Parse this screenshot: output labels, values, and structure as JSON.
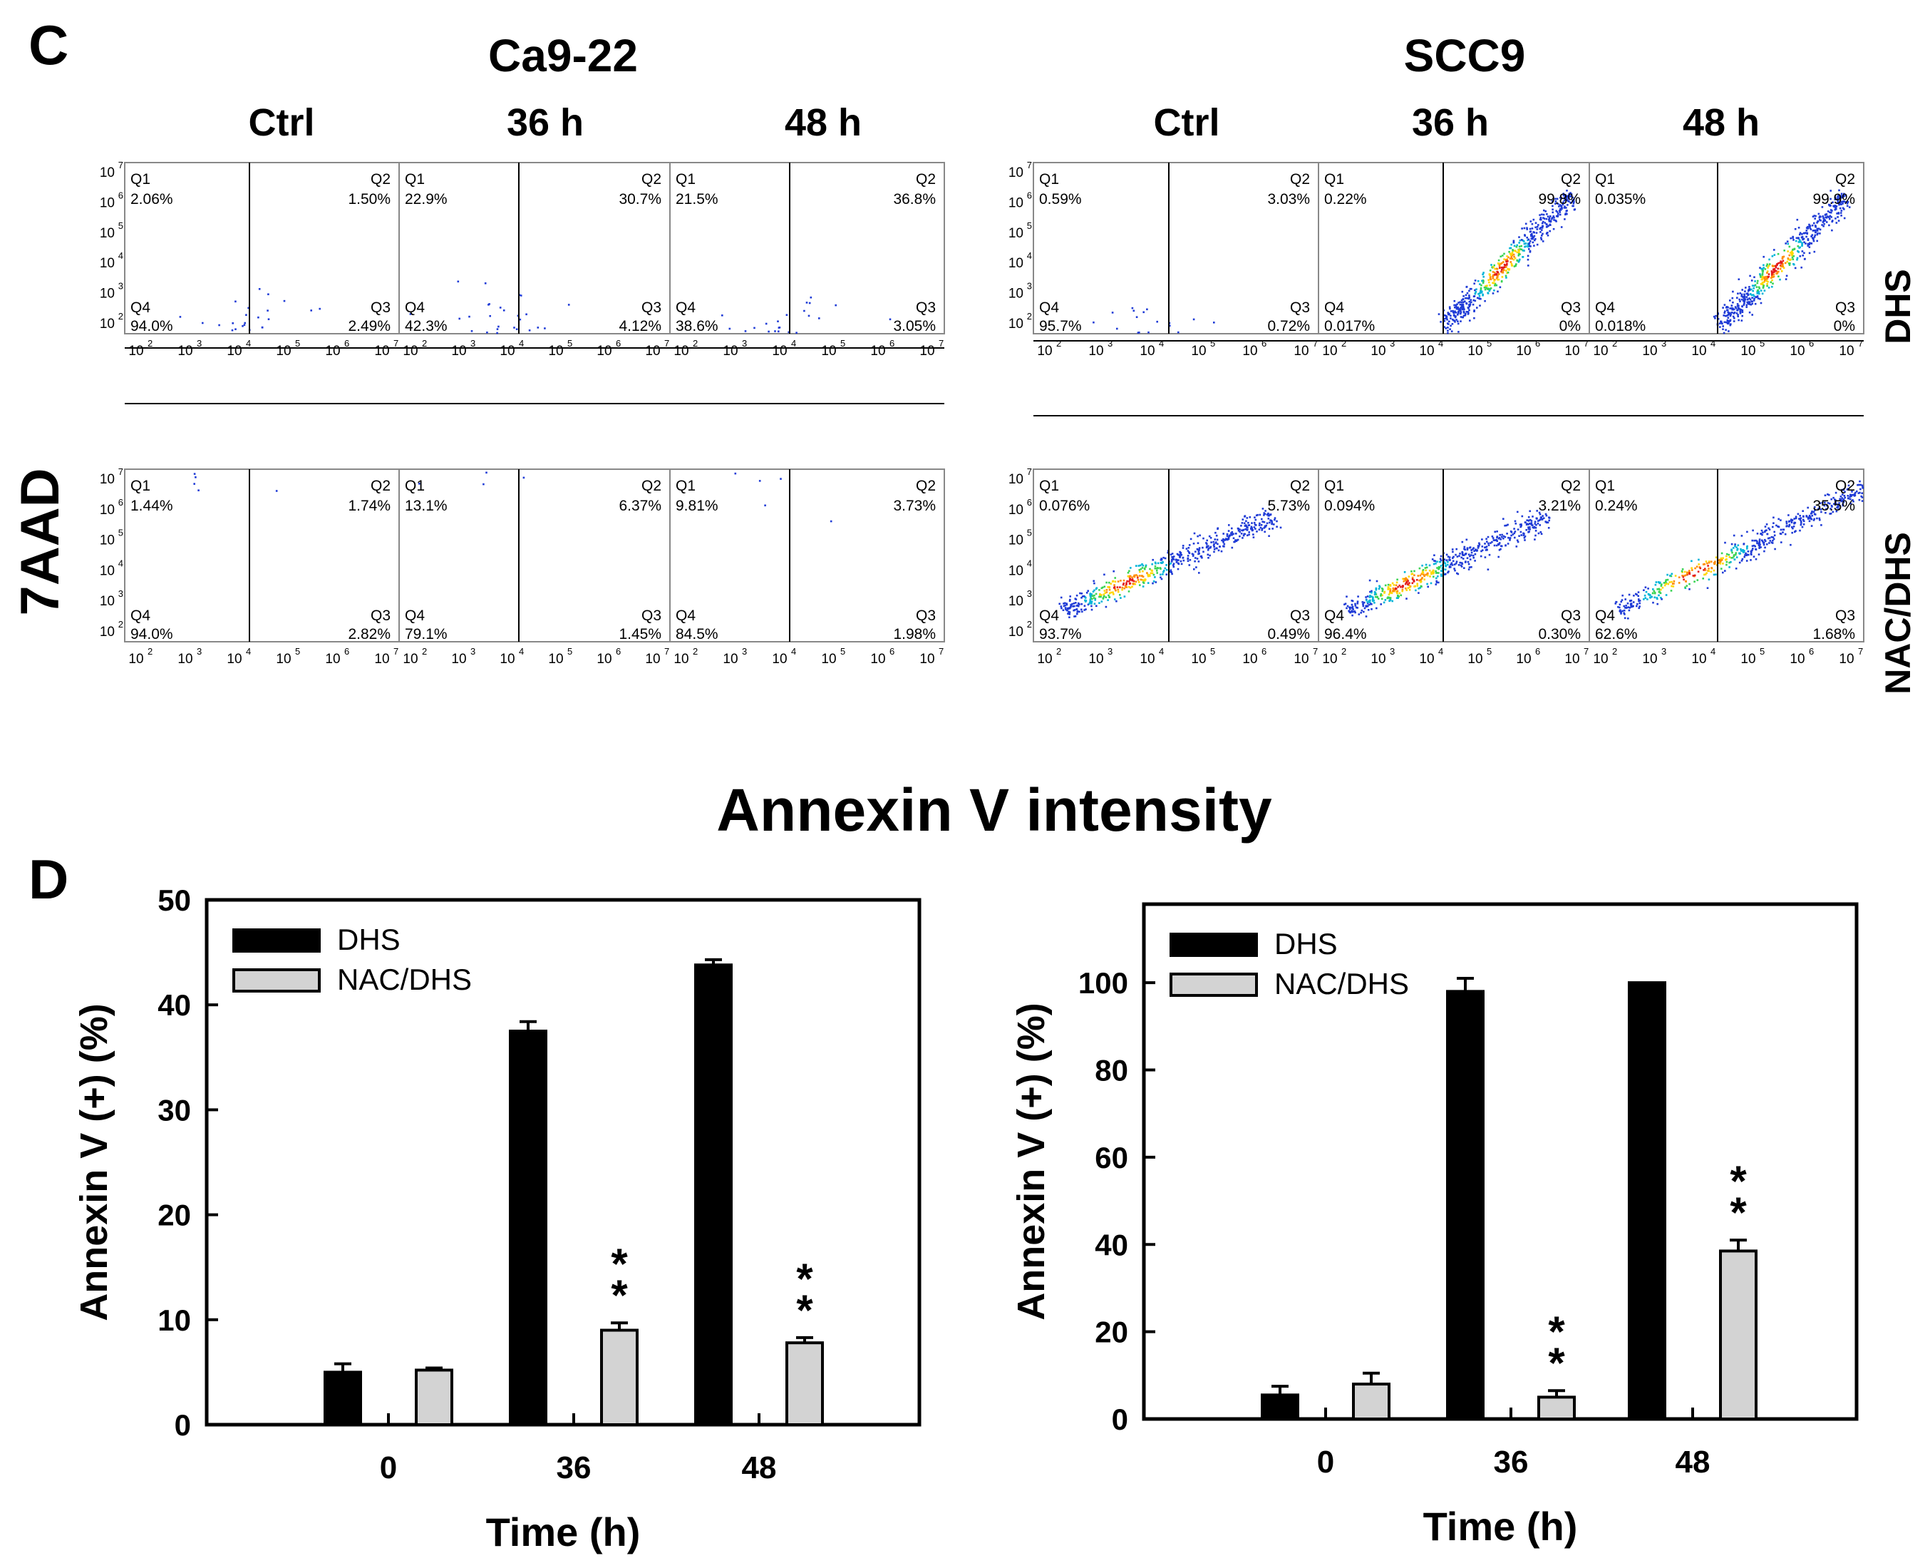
{
  "panel_c": {
    "letter": "C",
    "y_label": "7AAD",
    "x_label": "Annexin V intensity",
    "cell_lines": [
      "Ca9-22",
      "SCC9"
    ],
    "time_labels": [
      "Ctrl",
      "36 h",
      "48 h"
    ],
    "row_labels": [
      "DHS",
      "NAC/DHS"
    ],
    "axis_tick_labels": [
      "10",
      "10",
      "10",
      "10",
      "10",
      "10"
    ],
    "axis_tick_exponents": [
      "2",
      "3",
      "4",
      "5",
      "6",
      "7"
    ],
    "blocks": [
      {
        "cell_line": "Ca9-22",
        "rows": [
          {
            "treatment": "DHS",
            "plots": [
              {
                "time": "Ctrl",
                "quadrants": {
                  "Q1": "2.06%",
                  "Q2": "1.50%",
                  "Q3": "2.49%",
                  "Q4": "94.0%"
                }
              },
              {
                "time": "36 h",
                "quadrants": {
                  "Q1": "22.9%",
                  "Q2": "30.7%",
                  "Q3": "4.12%",
                  "Q4": "42.3%"
                }
              },
              {
                "time": "48 h",
                "quadrants": {
                  "Q1": "21.5%",
                  "Q2": "36.8%",
                  "Q3": "3.05%",
                  "Q4": "38.6%"
                }
              }
            ]
          },
          {
            "treatment": "NAC/DHS",
            "plots": [
              {
                "time": "Ctrl",
                "quadrants": {
                  "Q1": "1.44%",
                  "Q2": "1.74%",
                  "Q3": "2.82%",
                  "Q4": "94.0%"
                }
              },
              {
                "time": "36 h",
                "quadrants": {
                  "Q1": "13.1%",
                  "Q2": "6.37%",
                  "Q3": "1.45%",
                  "Q4": "79.1%"
                }
              },
              {
                "time": "48 h",
                "quadrants": {
                  "Q1": "9.81%",
                  "Q2": "3.73%",
                  "Q3": "1.98%",
                  "Q4": "84.5%"
                }
              }
            ]
          }
        ]
      },
      {
        "cell_line": "SCC9",
        "rows": [
          {
            "treatment": "DHS",
            "plots": [
              {
                "time": "Ctrl",
                "quadrants": {
                  "Q1": "0.59%",
                  "Q2": "3.03%",
                  "Q3": "0.72%",
                  "Q4": "95.7%"
                }
              },
              {
                "time": "36 h",
                "quadrants": {
                  "Q1": "0.22%",
                  "Q2": "99.8%",
                  "Q3": "0%",
                  "Q4": "0.017%"
                }
              },
              {
                "time": "48 h",
                "quadrants": {
                  "Q1": "0.035%",
                  "Q2": "99.9%",
                  "Q3": "0%",
                  "Q4": "0.018%"
                }
              }
            ]
          },
          {
            "treatment": "NAC/DHS",
            "plots": [
              {
                "time": "Ctrl",
                "quadrants": {
                  "Q1": "0.076%",
                  "Q2": "5.73%",
                  "Q3": "0.49%",
                  "Q4": "93.7%"
                }
              },
              {
                "time": "36 h",
                "quadrants": {
                  "Q1": "0.094%",
                  "Q2": "3.21%",
                  "Q3": "0.30%",
                  "Q4": "96.4%"
                }
              },
              {
                "time": "48 h",
                "quadrants": {
                  "Q1": "0.24%",
                  "Q2": "35.5%",
                  "Q3": "1.68%",
                  "Q4": "62.6%"
                }
              }
            ]
          }
        ]
      }
    ]
  },
  "chart_data": [
    {
      "type": "bar",
      "panel": "D",
      "cell_line": "Ca9-22",
      "categories": [
        "0",
        "36",
        "48"
      ],
      "series": [
        {
          "name": "DHS",
          "values": [
            5.0,
            37.5,
            43.8
          ],
          "errors": [
            0.8,
            0.9,
            0.5
          ],
          "color": "#000000"
        },
        {
          "name": "NAC/DHS",
          "values": [
            5.2,
            9.0,
            7.8
          ],
          "errors": [
            0.2,
            0.7,
            0.5
          ],
          "color": "#d3d3d3"
        }
      ],
      "significance": [
        {
          "category": "36",
          "series": "NAC/DHS",
          "label": "**"
        },
        {
          "category": "48",
          "series": "NAC/DHS",
          "label": "**"
        }
      ],
      "xlabel": "Time (h)",
      "ylabel": "Annexin V (+) (%)",
      "ylim": [
        0,
        50
      ],
      "yticks": [
        0,
        10,
        20,
        30,
        40,
        50
      ],
      "legend": "top-left",
      "grid": false
    },
    {
      "type": "bar",
      "panel": "D",
      "cell_line": "SCC9",
      "categories": [
        "0",
        "36",
        "48"
      ],
      "series": [
        {
          "name": "DHS",
          "values": [
            5.5,
            98.0,
            100.0
          ],
          "errors": [
            2.0,
            3.0,
            0.0
          ],
          "color": "#000000"
        },
        {
          "name": "NAC/DHS",
          "values": [
            8.0,
            5.0,
            38.5
          ],
          "errors": [
            2.5,
            1.5,
            2.5
          ],
          "color": "#d3d3d3"
        }
      ],
      "significance": [
        {
          "category": "36",
          "series": "NAC/DHS",
          "label": "**"
        },
        {
          "category": "48",
          "series": "NAC/DHS",
          "label": "**"
        }
      ],
      "xlabel": "Time (h)",
      "ylabel": "Annexin V (+) (%)",
      "ylim": [
        0,
        118
      ],
      "yticks": [
        0,
        20,
        40,
        60,
        80,
        100
      ],
      "legend": "top-left",
      "grid": false
    }
  ]
}
